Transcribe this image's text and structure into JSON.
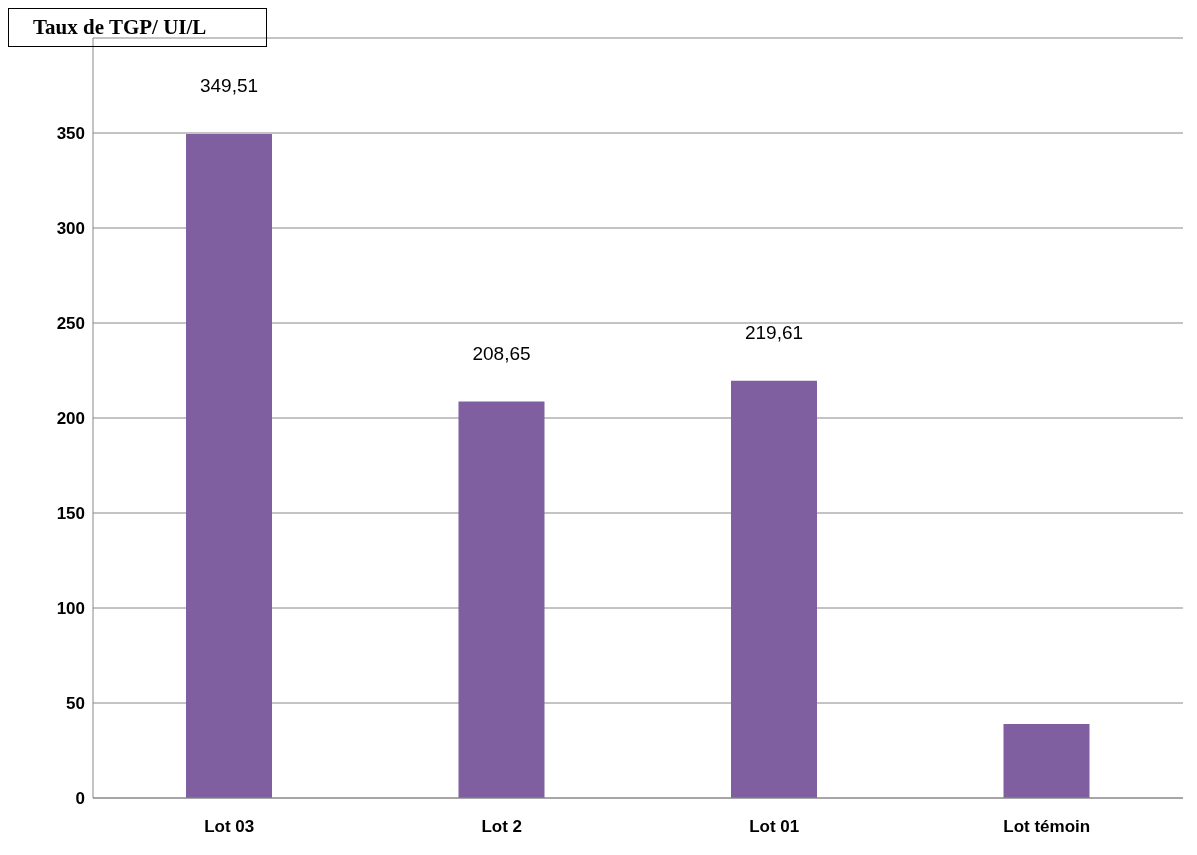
{
  "chart_data": {
    "type": "bar",
    "title": "Taux de TGP/ UI/L",
    "categories": [
      "Lot 03",
      "Lot 2",
      "Lot 01",
      "Lot témoin"
    ],
    "values": [
      349.51,
      208.65,
      219.61,
      39
    ],
    "value_labels": [
      "349,51",
      "208,65",
      "219,61",
      null
    ],
    "color": "#7f5f9f",
    "ylim": [
      0,
      400
    ],
    "yticks": [
      0,
      50,
      100,
      150,
      200,
      250,
      300,
      350,
      {
        "value": 400,
        "label": null
      }
    ],
    "grid": "y"
  }
}
